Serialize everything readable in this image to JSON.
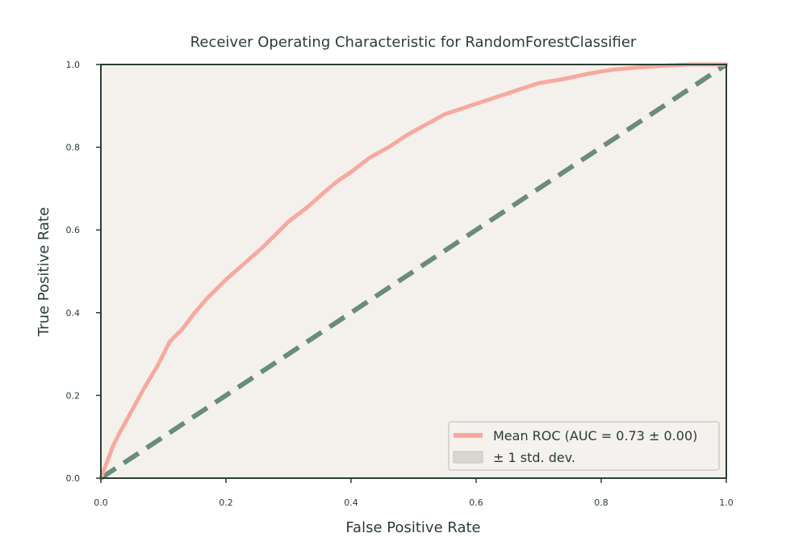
{
  "chart_data": {
    "type": "line",
    "title": "Receiver Operating Characteristic for RandomForestClassifier",
    "xlabel": "False Positive Rate",
    "ylabel": "True Positive Rate",
    "xlim": [
      0.0,
      1.0
    ],
    "ylim": [
      0.0,
      1.0
    ],
    "x_ticks": [
      "0.0",
      "0.2",
      "0.4",
      "0.6",
      "0.8",
      "1.0"
    ],
    "y_ticks": [
      "0.0",
      "0.2",
      "0.4",
      "0.6",
      "0.8",
      "1.0"
    ],
    "grid": false,
    "legend_position": "lower-right",
    "colors": {
      "plot_background": "#f4f1ed",
      "frame": "#2a3d33",
      "mean_roc": "#f7a9a0",
      "chance_line": "#6a8c7a",
      "std_band": "#d9d6d1",
      "text": "#2a3d33"
    },
    "series": [
      {
        "name": "Mean ROC (AUC = 0.73 ± 0.00)",
        "style": "solid",
        "x": [
          0.0,
          0.01,
          0.02,
          0.03,
          0.05,
          0.07,
          0.09,
          0.11,
          0.13,
          0.15,
          0.17,
          0.2,
          0.23,
          0.26,
          0.28,
          0.3,
          0.33,
          0.36,
          0.38,
          0.4,
          0.43,
          0.46,
          0.49,
          0.52,
          0.55,
          0.58,
          0.62,
          0.66,
          0.7,
          0.74,
          0.78,
          0.82,
          0.86,
          0.9,
          0.94,
          1.0
        ],
        "y": [
          0.0,
          0.04,
          0.08,
          0.11,
          0.165,
          0.22,
          0.27,
          0.33,
          0.36,
          0.4,
          0.435,
          0.48,
          0.52,
          0.56,
          0.59,
          0.62,
          0.655,
          0.695,
          0.72,
          0.74,
          0.775,
          0.8,
          0.83,
          0.855,
          0.88,
          0.895,
          0.915,
          0.935,
          0.955,
          0.965,
          0.978,
          0.988,
          0.993,
          0.997,
          1.0,
          1.0
        ]
      },
      {
        "name": "",
        "style": "dashed",
        "x": [
          0.0,
          1.0
        ],
        "y": [
          0.0,
          1.0
        ]
      }
    ],
    "band": {
      "name": "± 1 std. dev."
    }
  }
}
